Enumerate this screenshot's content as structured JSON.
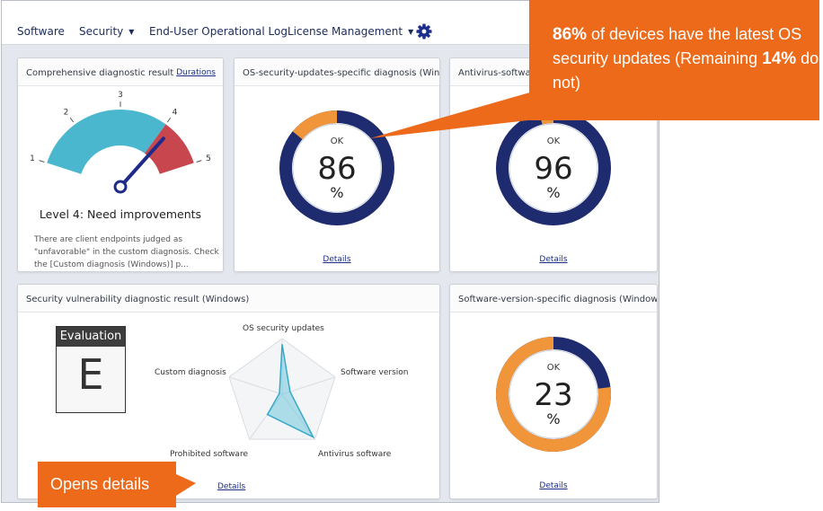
{
  "nav": {
    "items": [
      "Software",
      "Security",
      "End-User Operational Log",
      "License Management"
    ],
    "settings_icon": "gear-icon"
  },
  "gauge_panel": {
    "title": "Comprehensive diagnostic result",
    "link": "Durations",
    "scale": [
      "1",
      "2",
      "3",
      "4",
      "5"
    ],
    "level_text": "Level 4: Need improvements",
    "description": "There are client endpoints judged as \"unfavorable\" in the custom diagnosis. Check the [Custom diagnosis (Windows)] p..."
  },
  "os_panel": {
    "title": "OS-security-updates-specific diagnosis (Windows)",
    "status": "OK",
    "value": "86",
    "unit": "%",
    "details": "Details"
  },
  "av_panel": {
    "title": "Antivirus-software",
    "status": "OK",
    "value": "96",
    "unit": "%",
    "details": "Details"
  },
  "vuln_panel": {
    "title": "Security vulnerability diagnostic result (Windows)",
    "eval_label": "Evaluation",
    "eval_grade": "E",
    "radar_labels": [
      "OS security updates",
      "Software version",
      "Antivirus software",
      "Prohibited software",
      "Custom diagnosis"
    ],
    "radar_levels": [
      0.9,
      0.15,
      0.95,
      0.45,
      0.05
    ],
    "details": "Details"
  },
  "sw_panel": {
    "title": "Software-version-specific diagnosis (Windows)",
    "status": "OK",
    "value": "23",
    "unit": "%",
    "details": "Details"
  },
  "callouts": {
    "top_pct1": "86%",
    "top_text1": " of devices have the latest OS security updates (Remaining ",
    "top_pct2": "14%",
    "top_text2": " do not)",
    "bottom": "Opens details"
  },
  "colors": {
    "ok": "#1e2b6e",
    "ng": "#f0953a",
    "gauge_teal": "#4bb7cf",
    "gauge_red": "#c8474f",
    "callout": "#ed6a1b"
  }
}
